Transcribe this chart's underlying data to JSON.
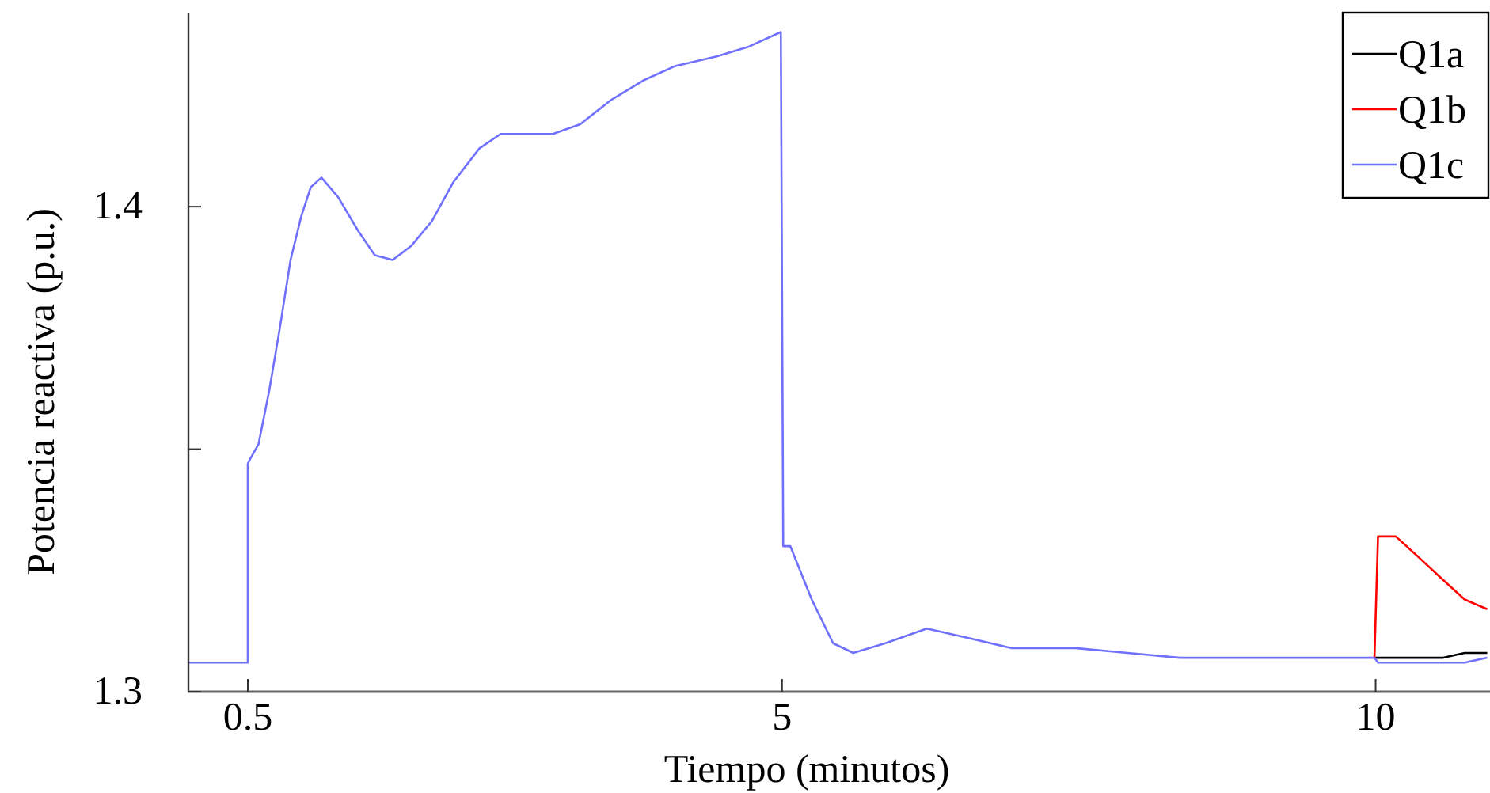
{
  "chart_data": {
    "type": "line",
    "xlabel": "Tiempo (minutos)",
    "ylabel": "Potencia reactiva (p.u.)",
    "x": [
      0,
      0.5,
      0.5,
      0.52,
      0.59,
      0.68,
      0.77,
      0.86,
      0.95,
      1.03,
      1.12,
      1.26,
      1.43,
      1.57,
      1.72,
      1.88,
      2.05,
      2.23,
      2.45,
      2.63,
      2.85,
      3.07,
      3.3,
      3.56,
      3.83,
      4.1,
      4.45,
      4.72,
      4.99,
      5.01,
      5.07,
      5.25,
      5.43,
      5.6,
      5.87,
      6.22,
      6.58,
      6.93,
      7.47,
      7.91,
      8.35,
      9.24,
      9.99,
      10.02,
      10.17,
      10.35,
      10.57,
      10.75,
      10.94
    ],
    "series": [
      {
        "name": "Q1a",
        "color": "#000000",
        "values": [
          null,
          null,
          null,
          null,
          null,
          null,
          null,
          null,
          null,
          null,
          null,
          null,
          null,
          null,
          null,
          null,
          null,
          null,
          null,
          null,
          null,
          null,
          null,
          null,
          null,
          null,
          null,
          null,
          null,
          null,
          null,
          null,
          null,
          null,
          null,
          null,
          null,
          null,
          null,
          null,
          null,
          null,
          1.307,
          1.307,
          1.307,
          1.307,
          1.307,
          1.308,
          1.308
        ]
      },
      {
        "name": "Q1b",
        "color": "#ff0000",
        "values": [
          null,
          null,
          null,
          null,
          null,
          null,
          null,
          null,
          null,
          null,
          null,
          null,
          null,
          null,
          null,
          null,
          null,
          null,
          null,
          null,
          null,
          null,
          null,
          null,
          null,
          null,
          null,
          null,
          null,
          null,
          null,
          null,
          null,
          null,
          null,
          null,
          null,
          null,
          null,
          null,
          null,
          null,
          1.307,
          1.332,
          1.332,
          1.328,
          1.323,
          1.319,
          1.317
        ]
      },
      {
        "name": "Q1c",
        "color": "#7070ff",
        "values": [
          1.306,
          1.306,
          1.347,
          1.348,
          1.351,
          1.362,
          1.375,
          1.389,
          1.398,
          1.404,
          1.406,
          1.402,
          1.395,
          1.39,
          1.389,
          1.392,
          1.397,
          1.405,
          1.412,
          1.415,
          1.415,
          1.415,
          1.417,
          1.422,
          1.426,
          1.429,
          1.431,
          1.433,
          1.436,
          1.33,
          1.33,
          1.319,
          1.31,
          1.308,
          1.31,
          1.313,
          1.311,
          1.309,
          1.309,
          1.308,
          1.307,
          1.307,
          1.307,
          1.306,
          1.306,
          1.306,
          1.306,
          1.306,
          1.307
        ]
      }
    ],
    "xlim": [
      0,
      10.95
    ],
    "xticks": [
      0.5,
      5,
      10
    ],
    "ylim": [
      1.3,
      1.44
    ],
    "yticks": [
      1.3,
      {
        "value": 1.35,
        "label": null
      },
      1.4
    ],
    "legend": "top right",
    "grid": false,
    "marker": "none",
    "line_style": "solid"
  }
}
